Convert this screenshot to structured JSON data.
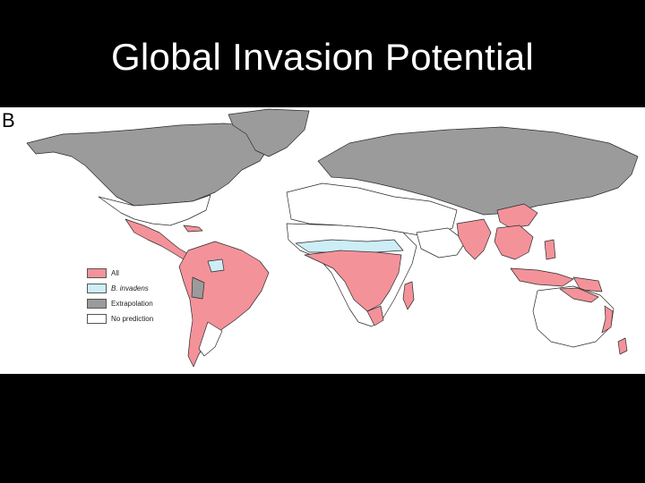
{
  "title": "Global Invasion Potential",
  "panel_label": "B",
  "colors": {
    "all": "#f4929a",
    "invadens": "#cdeef6",
    "extrapolation": "#9b9b9b",
    "no_prediction": "#ffffff",
    "border": "#2a2a2a"
  },
  "legend": {
    "items": [
      {
        "label": "All",
        "color_key": "all"
      },
      {
        "label": "B. invadens",
        "color_key": "invadens",
        "italic": true
      },
      {
        "label": "Extrapolation",
        "color_key": "extrapolation"
      },
      {
        "label": "No prediction",
        "color_key": "no_prediction"
      }
    ]
  }
}
